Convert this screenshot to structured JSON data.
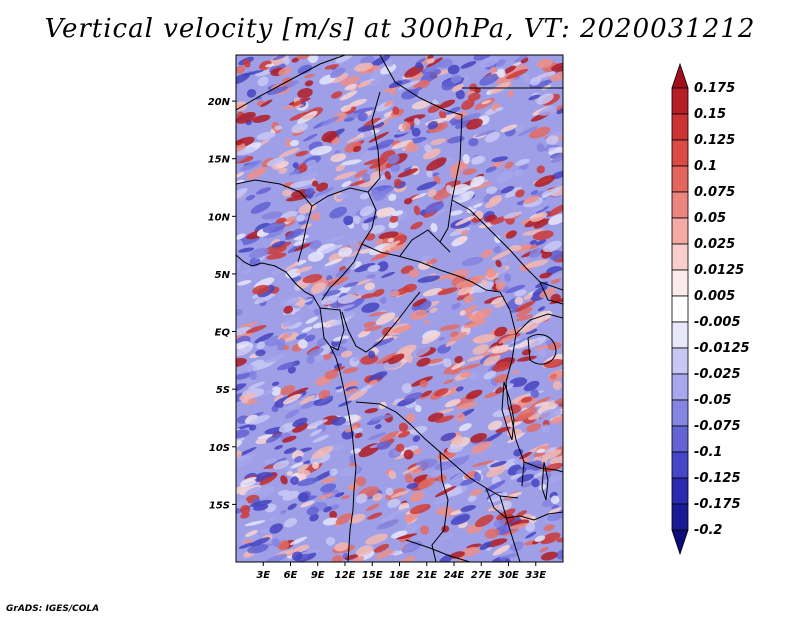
{
  "title": "Vertical velocity [m/s] at 300hPa, VT: 2020031212",
  "footer": "GrADS: IGES/COLA",
  "map": {
    "lon_range": [
      0,
      36
    ],
    "lat_range": [
      -20,
      24
    ],
    "lat_ticks": [
      {
        "value": 20,
        "label": "20N"
      },
      {
        "value": 15,
        "label": "15N"
      },
      {
        "value": 10,
        "label": "10N"
      },
      {
        "value": 5,
        "label": "5N"
      },
      {
        "value": 0,
        "label": "EQ"
      },
      {
        "value": -5,
        "label": "5S"
      },
      {
        "value": -10,
        "label": "10S"
      },
      {
        "value": -15,
        "label": "15S"
      }
    ],
    "lon_ticks": [
      {
        "value": 3,
        "label": "3E"
      },
      {
        "value": 6,
        "label": "6E"
      },
      {
        "value": 9,
        "label": "9E"
      },
      {
        "value": 12,
        "label": "12E"
      },
      {
        "value": 15,
        "label": "15E"
      },
      {
        "value": 18,
        "label": "18E"
      },
      {
        "value": 21,
        "label": "21E"
      },
      {
        "value": 24,
        "label": "24E"
      },
      {
        "value": 27,
        "label": "27E"
      },
      {
        "value": 30,
        "label": "30E"
      },
      {
        "value": 33,
        "label": "33E"
      }
    ]
  },
  "colorbar": {
    "levels": [
      "0.175",
      "0.15",
      "0.125",
      "0.1",
      "0.075",
      "0.05",
      "0.025",
      "0.0125",
      "0.005",
      "-0.005",
      "-0.0125",
      "-0.025",
      "-0.05",
      "-0.075",
      "-0.1",
      "-0.125",
      "-0.175",
      "-0.2"
    ],
    "colors": [
      "#a0101e",
      "#b81e26",
      "#cc3232",
      "#dc4a46",
      "#e4645e",
      "#ec8580",
      "#f4aaa5",
      "#f8cfcc",
      "#fbebea",
      "#ffffff",
      "#e8e8fa",
      "#c8c8f4",
      "#a8a8ee",
      "#8585e2",
      "#6464d6",
      "#4646c8",
      "#2a2ab0",
      "#1a1a95",
      "#0c0c7a"
    ]
  }
}
